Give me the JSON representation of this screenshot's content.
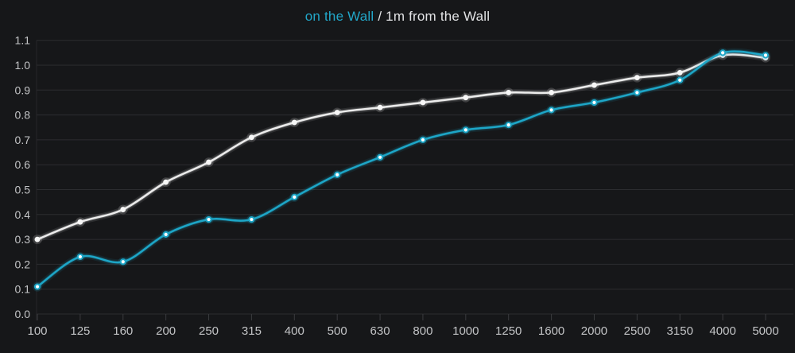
{
  "title": {
    "series1_label": "on the Wall",
    "separator": " / ",
    "series2_label": "1m from the Wall"
  },
  "colors": {
    "background": "#161719",
    "grid": "#2c2d30",
    "axis_tick": "#3a3b3e",
    "tick_text": "#c3c4c6",
    "title_text": "#e2e3e5",
    "teal_series": "#1da6c7",
    "white_series": "#ececec"
  },
  "chart_data": {
    "type": "line",
    "title": "on the Wall / 1m from the Wall",
    "xlabel": "",
    "ylabel": "",
    "categories": [
      "100",
      "125",
      "160",
      "200",
      "250",
      "315",
      "400",
      "500",
      "630",
      "800",
      "1000",
      "1250",
      "1600",
      "2000",
      "2500",
      "3150",
      "4000",
      "5000"
    ],
    "series": [
      {
        "name": "on the Wall",
        "color": "#1da6c7",
        "marker": {
          "fill": "#ffffff",
          "stroke": "#1da6c7"
        },
        "values": [
          0.11,
          0.23,
          0.21,
          0.32,
          0.38,
          0.38,
          0.47,
          0.56,
          0.63,
          0.7,
          0.74,
          0.76,
          0.82,
          0.85,
          0.89,
          0.94,
          1.05,
          1.04
        ]
      },
      {
        "name": "1m from the Wall",
        "color": "#ececec",
        "marker": {
          "fill": "#f7f7f7",
          "stroke": "none"
        },
        "values": [
          0.3,
          0.37,
          0.42,
          0.53,
          0.61,
          0.71,
          0.77,
          0.81,
          0.83,
          0.85,
          0.87,
          0.89,
          0.89,
          0.92,
          0.95,
          0.97,
          1.04,
          1.03
        ]
      }
    ],
    "ylim": [
      0.0,
      1.1
    ],
    "yticks": [
      "0.0",
      "0.1",
      "0.2",
      "0.3",
      "0.4",
      "0.5",
      "0.6",
      "0.7",
      "0.8",
      "0.9",
      "1.0",
      "1.1"
    ],
    "grid": "horizontal-only",
    "legend_position": "top-center-as-title",
    "smoothing": "catmull-rom"
  }
}
